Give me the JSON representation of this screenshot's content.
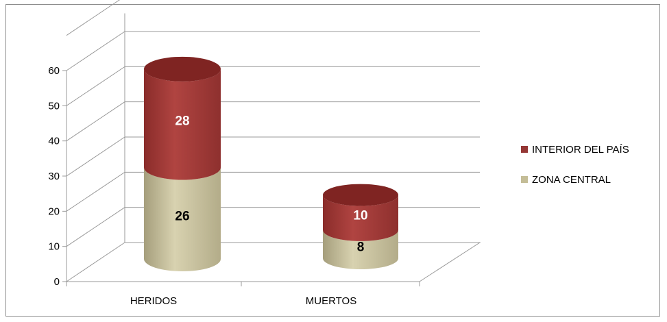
{
  "chart_data": {
    "type": "bar",
    "style": "3d-stacked-cylinder",
    "categories": [
      "HERIDOS",
      "MUERTOS"
    ],
    "series": [
      {
        "name": "ZONA CENTRAL",
        "values": [
          26,
          8
        ],
        "color": "#c4bd97"
      },
      {
        "name": "INTERIOR DEL PAÍS",
        "values": [
          28,
          10
        ],
        "color": "#953735"
      }
    ],
    "yticks": [
      "0",
      "10",
      "20",
      "30",
      "40",
      "50",
      "60"
    ],
    "ylim": [
      0,
      60
    ],
    "grid": true,
    "legend_position": "right",
    "legend": [
      "INTERIOR DEL PAÍS",
      "ZONA CENTRAL"
    ],
    "data_labels": [
      "26",
      "28",
      "8",
      "10"
    ]
  }
}
